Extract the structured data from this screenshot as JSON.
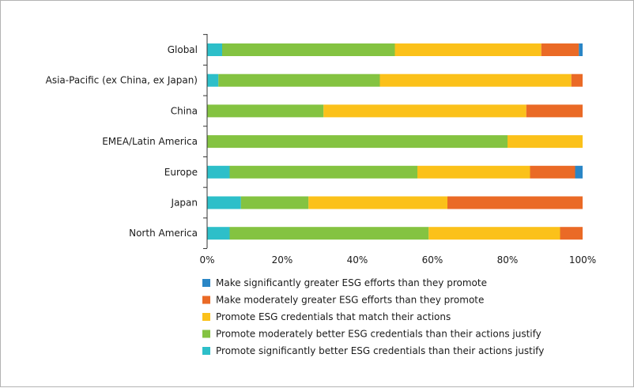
{
  "chart_data": {
    "type": "bar",
    "orientation": "horizontal",
    "stacked": true,
    "categories": [
      "Global",
      "Asia-Pacific (ex China, ex Japan)",
      "China",
      "EMEA/Latin America",
      "Europe",
      "Japan",
      "North America"
    ],
    "x_ticks": [
      "0%",
      "20%",
      "40%",
      "60%",
      "80%",
      "100%"
    ],
    "xlim": [
      0,
      100
    ],
    "grid": false,
    "legend_position": "bottom",
    "series": [
      {
        "name": "Promote significantly better ESG credentials than their actions justify",
        "color": "#2dbfc9",
        "values": [
          4,
          3,
          0,
          0,
          6,
          9,
          6
        ]
      },
      {
        "name": "Promote moderately better ESG credentials than their actions justify",
        "color": "#84c341",
        "values": [
          46,
          43,
          31,
          80,
          50,
          18,
          53
        ]
      },
      {
        "name": "Promote ESG credentials that match their actions",
        "color": "#fbc11a",
        "values": [
          39,
          51,
          54,
          20,
          30,
          37,
          35
        ]
      },
      {
        "name": "Make moderately greater ESG efforts than they promote",
        "color": "#ea6a26",
        "values": [
          10,
          3,
          15,
          0,
          12,
          36,
          6
        ]
      },
      {
        "name": "Make significantly greater ESG efforts than they promote",
        "color": "#2a86c6",
        "values": [
          1,
          0,
          0,
          0,
          2,
          0,
          0
        ]
      }
    ],
    "legend_order": [
      4,
      3,
      2,
      1,
      0
    ]
  }
}
